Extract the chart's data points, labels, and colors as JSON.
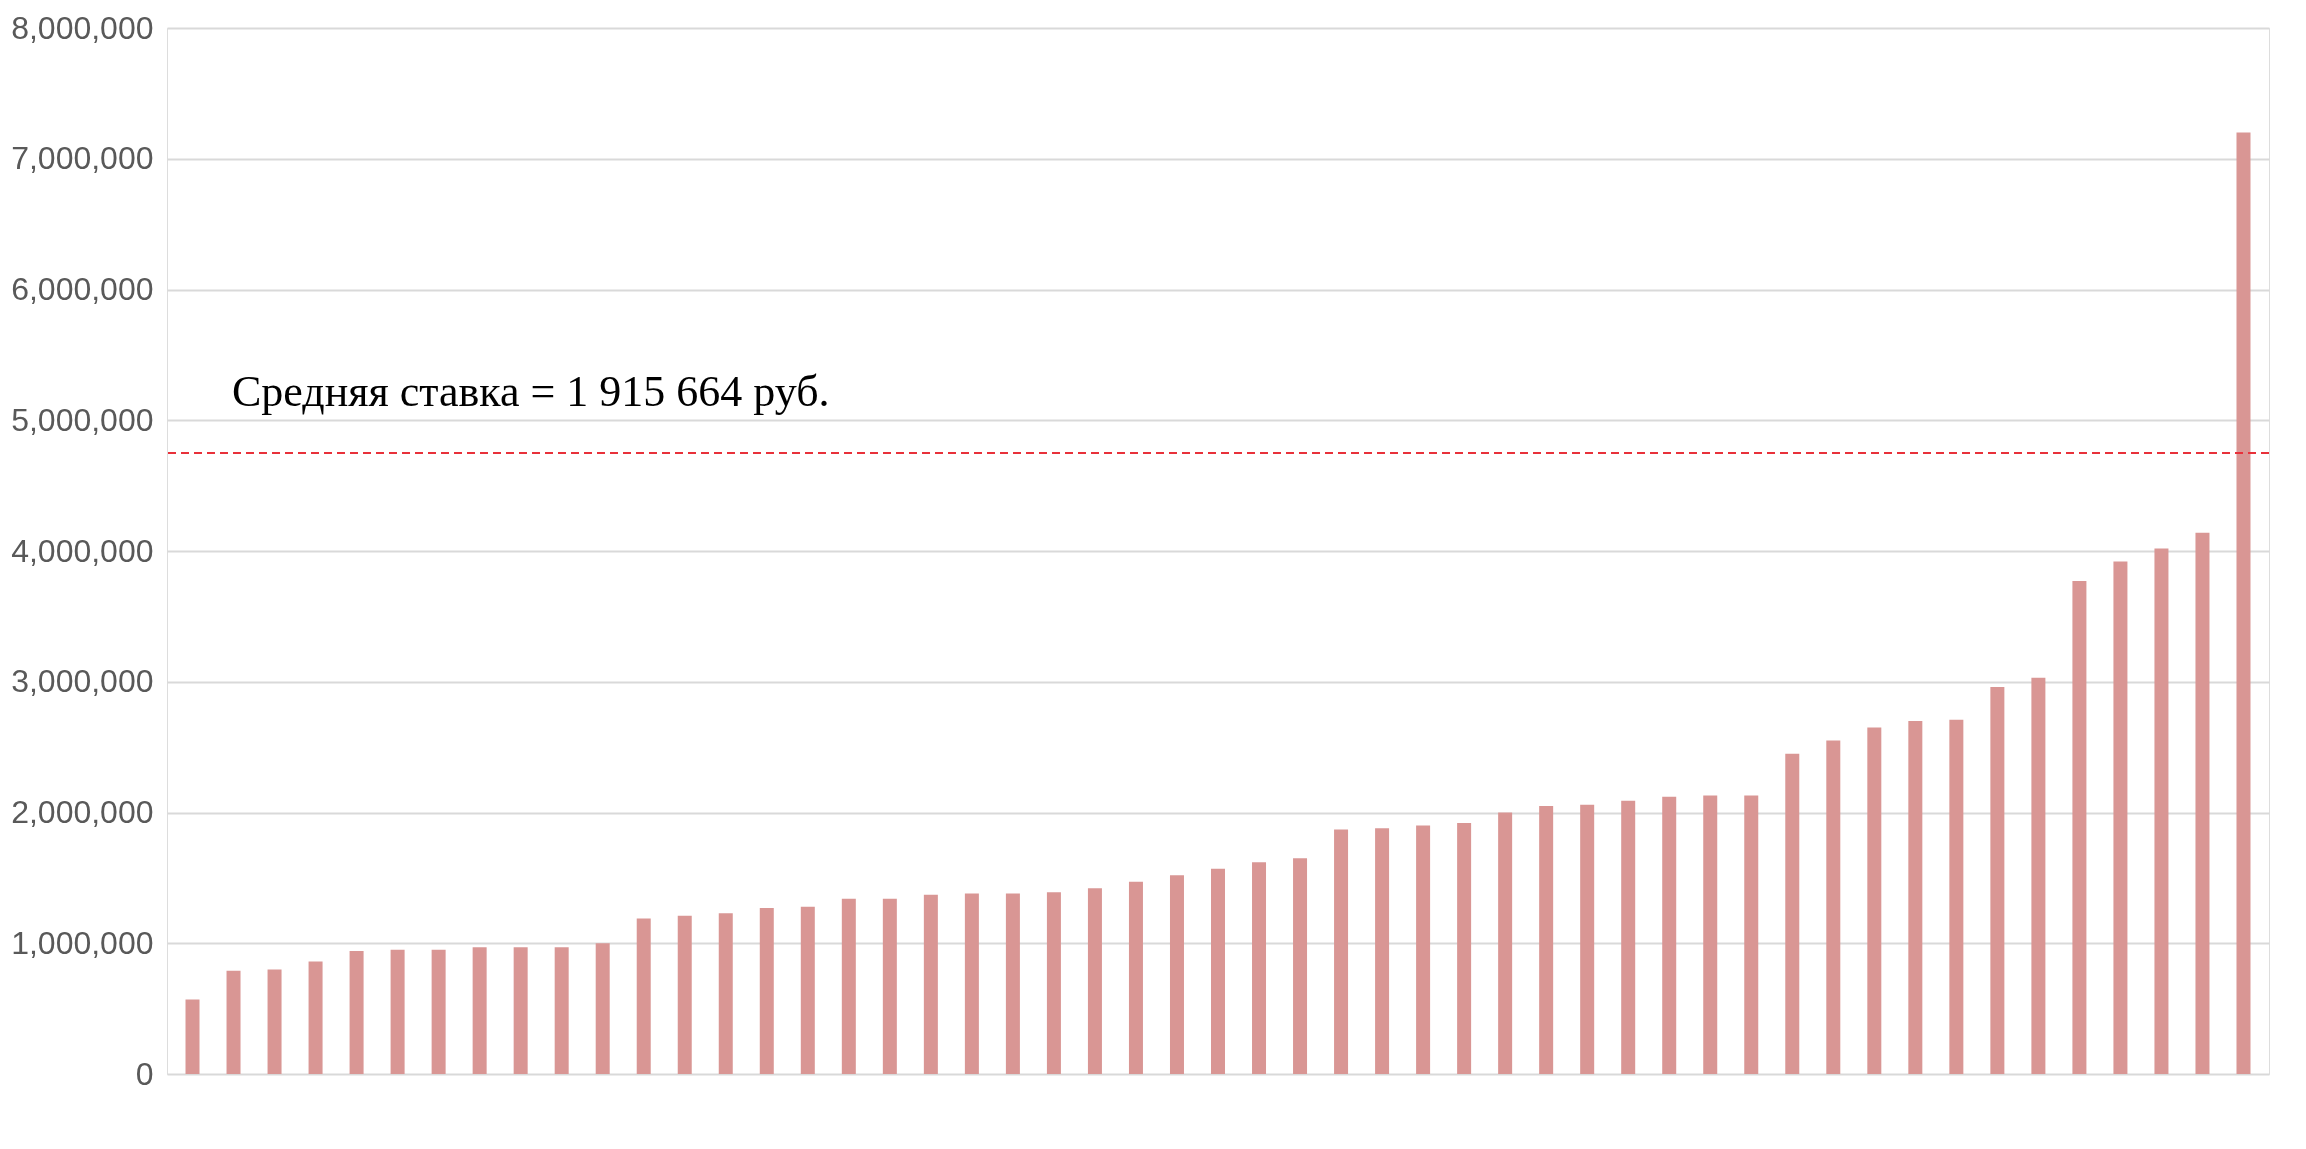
{
  "chart_data": {
    "type": "bar",
    "categories": [
      null,
      null,
      null,
      null,
      null,
      null,
      null,
      null,
      null,
      null,
      null,
      null,
      null,
      null,
      null,
      null,
      null,
      null,
      null,
      null,
      null,
      null,
      null,
      null,
      null,
      null,
      null,
      null,
      null,
      null,
      null,
      null,
      null,
      null,
      null,
      null,
      null,
      null,
      null,
      null,
      null,
      null,
      null,
      null,
      null,
      null,
      null,
      null,
      null,
      null,
      null
    ],
    "values": [
      570000,
      790000,
      800000,
      860000,
      940000,
      950000,
      950000,
      970000,
      970000,
      970000,
      1000000,
      1190000,
      1210000,
      1230000,
      1270000,
      1280000,
      1340000,
      1340000,
      1370000,
      1380000,
      1380000,
      1390000,
      1420000,
      1470000,
      1520000,
      1570000,
      1620000,
      1650000,
      1870000,
      1880000,
      1900000,
      1920000,
      2000000,
      2050000,
      2060000,
      2090000,
      2120000,
      2130000,
      2130000,
      2450000,
      2550000,
      2650000,
      2700000,
      2710000,
      2960000,
      3030000,
      3770000,
      3920000,
      4020000,
      4140000,
      7200000
    ],
    "color": "#d99694",
    "ylim": [
      0,
      8000000
    ],
    "yticks": [
      0,
      {
        "value": 1000000,
        "label": "1,000,000"
      },
      {
        "value": 2000000,
        "label": "2,000,000"
      },
      {
        "value": 3000000,
        "label": "3,000,000"
      },
      {
        "value": 4000000,
        "label": "4,000,000"
      },
      {
        "value": 5000000,
        "label": "5,000,000"
      },
      {
        "value": 6000000,
        "label": "6,000,000"
      },
      {
        "value": 7000000,
        "label": "7,000,000"
      },
      {
        "value": 8000000,
        "label": "8,000,000"
      }
    ],
    "grid": "y",
    "tick_labels": "y",
    "annotations": [
      "Средняя ставка = 1 915 664 руб."
    ],
    "ref_lines": [
      {
        "axis": "y",
        "value": 4750000,
        "color": "#e8313a",
        "line_style": "dashed"
      }
    ]
  }
}
